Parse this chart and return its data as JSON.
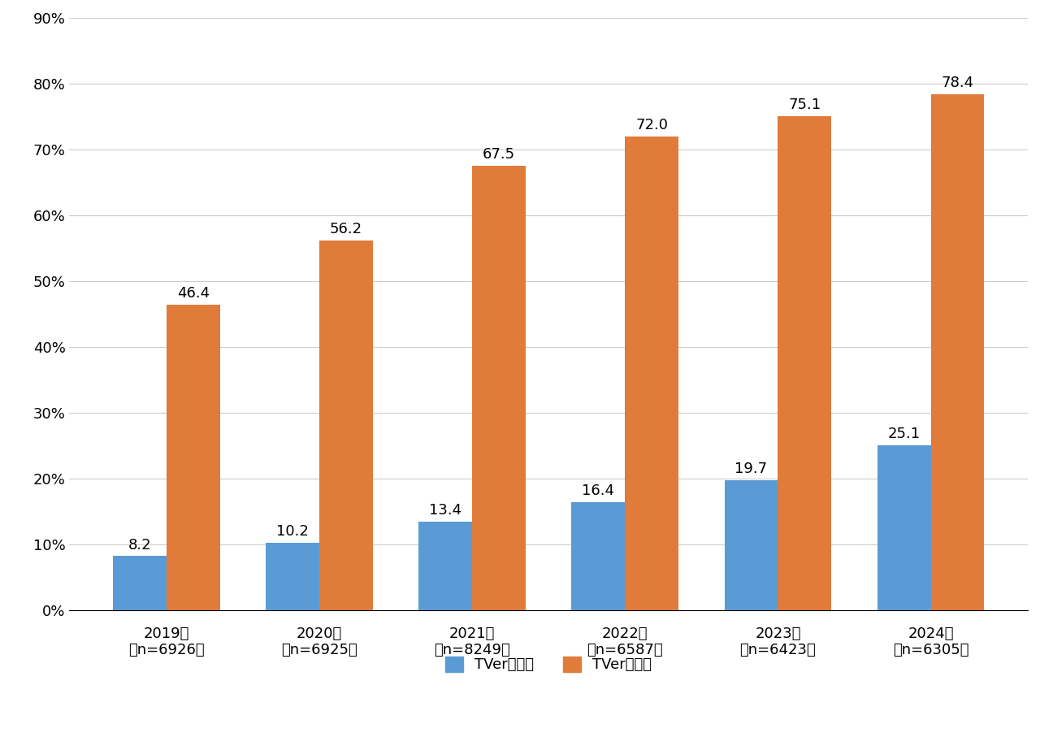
{
  "years_line1": [
    "2019年",
    "2020年",
    "2021年",
    "2022年",
    "2023年",
    "2024年"
  ],
  "years_line2": [
    "（n=6926）",
    "（n=6925）",
    "（n=8249）",
    "（n=6587）",
    "（n=6423）",
    "（n=6305）"
  ],
  "utilization": [
    8.2,
    10.2,
    13.4,
    16.4,
    19.7,
    25.1
  ],
  "awareness": [
    46.4,
    56.2,
    67.5,
    72.0,
    75.1,
    78.4
  ],
  "utilization_color": "#5B9BD5",
  "awareness_color": "#E07B39",
  "background_color": "#FFFFFF",
  "grid_color": "#CCCCCC",
  "ylim": [
    0,
    90
  ],
  "yticks": [
    0,
    10,
    20,
    30,
    40,
    50,
    60,
    70,
    80,
    90
  ],
  "ytick_labels": [
    "0%",
    "10%",
    "20%",
    "30%",
    "40%",
    "50%",
    "60%",
    "70%",
    "80%",
    "90%"
  ],
  "bar_width": 0.35,
  "legend_utilization": "TVer利用率",
  "legend_awareness": "TVer認知率",
  "tick_fontsize": 13,
  "legend_fontsize": 13,
  "value_fontsize": 13
}
